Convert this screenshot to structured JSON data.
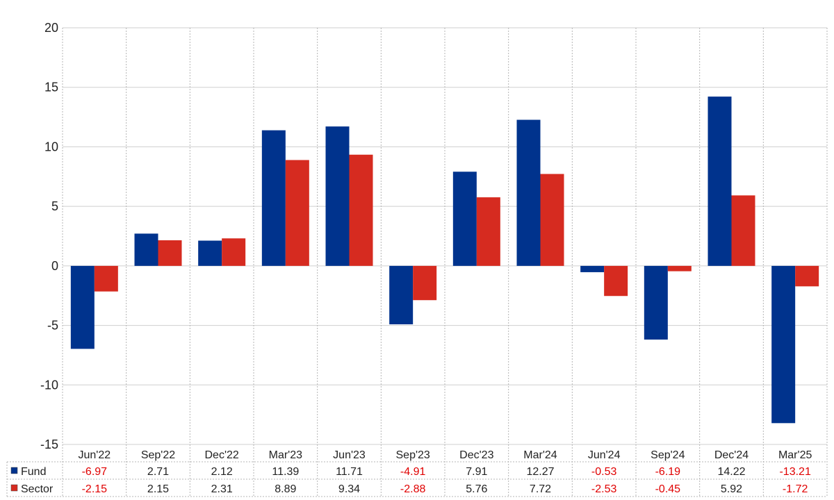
{
  "chart_data": {
    "type": "bar",
    "categories": [
      "Jun'22",
      "Sep'22",
      "Dec'22",
      "Mar'23",
      "Jun'23",
      "Sep'23",
      "Dec'23",
      "Mar'24",
      "Jun'24",
      "Sep'24",
      "Dec'24",
      "Mar'25"
    ],
    "series": [
      {
        "name": "Fund",
        "color": "#00338d",
        "values": [
          -6.97,
          2.71,
          2.12,
          11.39,
          11.71,
          -4.91,
          7.91,
          12.27,
          -0.53,
          -6.19,
          14.22,
          -13.21
        ],
        "labels": [
          "-6.97",
          "2.71",
          "2.12",
          "11.39",
          "11.71",
          "-4.91",
          "7.91",
          "12.27",
          "-0.53",
          "-6.19",
          "14.22",
          "-13.21"
        ]
      },
      {
        "name": "Sector",
        "color": "#d62b20",
        "values": [
          -2.15,
          2.15,
          2.31,
          8.89,
          9.34,
          -2.88,
          5.76,
          7.72,
          -2.53,
          -0.45,
          5.92,
          -1.72
        ],
        "labels": [
          "-2.15",
          "2.15",
          "2.31",
          "8.89",
          "9.34",
          "-2.88",
          "5.76",
          "7.72",
          "-2.53",
          "-0.45",
          "5.92",
          "-1.72"
        ]
      }
    ],
    "title": "",
    "xlabel": "",
    "ylabel": "",
    "ylim": [
      -15,
      20
    ],
    "yticks": [
      20,
      15,
      10,
      5,
      0,
      -5,
      -10,
      -15
    ],
    "grid": true,
    "legend": "data-table-left",
    "negative_value_color": "#e00000"
  }
}
